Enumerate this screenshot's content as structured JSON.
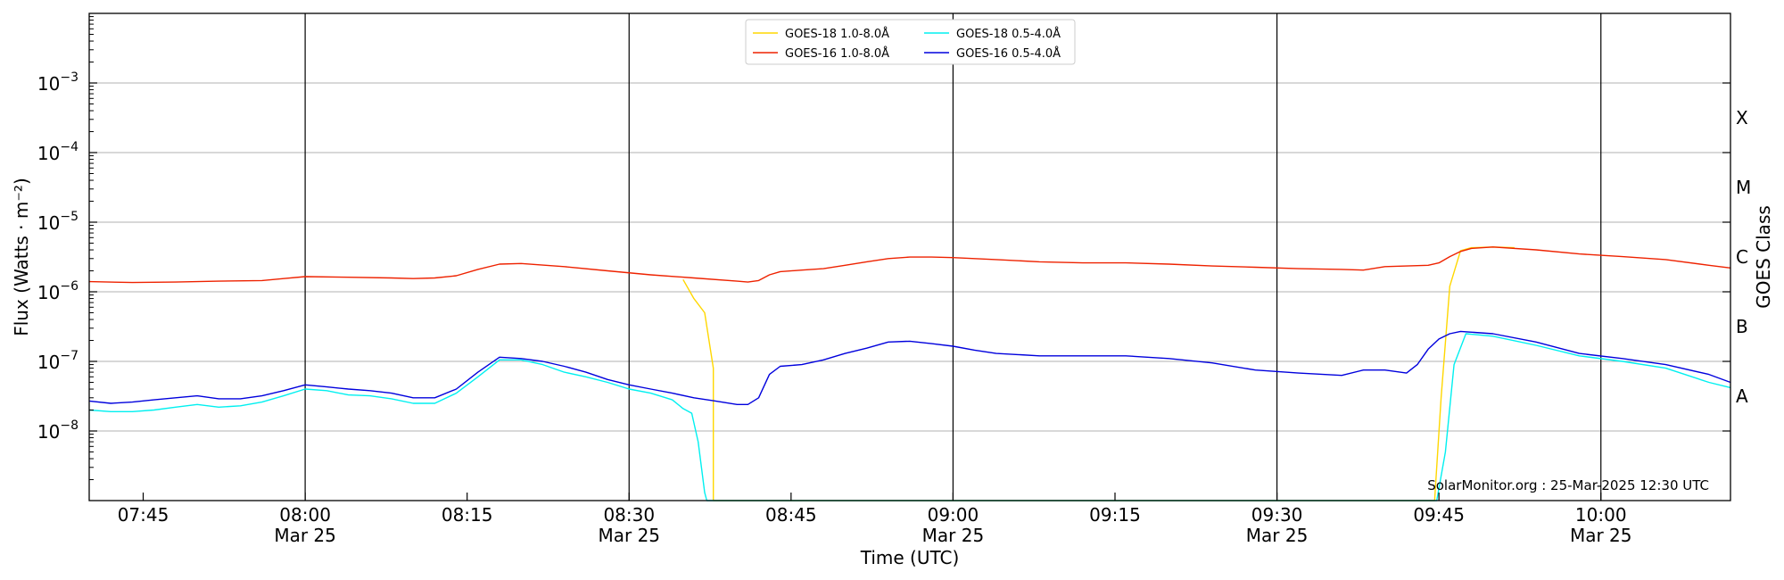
{
  "chart_data": {
    "type": "line",
    "title": "",
    "xlabel": "Time (UTC)",
    "ylabel": "Flux (Watts · m⁻²)",
    "ylabel_right": "GOES Class",
    "credit": "SolarMonitor.org : 25-Mar-2025 12:30 UTC",
    "x_unit": "minutes after 07:40 UTC, 25-Mar-2025",
    "xlim": [
      0,
      152
    ],
    "ylim_log10": [
      -9,
      -2
    ],
    "y_scale": "log",
    "grid": "horizontal",
    "legend_position": "top-center",
    "x_ticks": [
      {
        "at": 5,
        "label": "07:45",
        "sub": ""
      },
      {
        "at": 20,
        "label": "08:00",
        "sub": "Mar 25"
      },
      {
        "at": 35,
        "label": "08:15",
        "sub": ""
      },
      {
        "at": 50,
        "label": "08:30",
        "sub": "Mar 25"
      },
      {
        "at": 65,
        "label": "08:45",
        "sub": ""
      },
      {
        "at": 80,
        "label": "09:00",
        "sub": "Mar 25"
      },
      {
        "at": 95,
        "label": "09:15",
        "sub": ""
      },
      {
        "at": 110,
        "label": "09:30",
        "sub": "Mar 25"
      },
      {
        "at": 125,
        "label": "09:45",
        "sub": ""
      },
      {
        "at": 140,
        "label": "10:00",
        "sub": "Mar 25"
      }
    ],
    "vlines": [
      20,
      50,
      80,
      110,
      140
    ],
    "y_ticks": [
      {
        "exp": -8,
        "base": "10",
        "power": "−8"
      },
      {
        "exp": -7,
        "base": "10",
        "power": "−7"
      },
      {
        "exp": -6,
        "base": "10",
        "power": "−6"
      },
      {
        "exp": -5,
        "base": "10",
        "power": "−5"
      },
      {
        "exp": -4,
        "base": "10",
        "power": "−4"
      },
      {
        "exp": -3,
        "base": "10",
        "power": "−3"
      }
    ],
    "goes_classes": [
      {
        "label": "A",
        "log10": -7.5
      },
      {
        "label": "B",
        "log10": -6.5
      },
      {
        "label": "C",
        "log10": -5.5
      },
      {
        "label": "M",
        "log10": -4.5
      },
      {
        "label": "X",
        "log10": -3.5
      }
    ],
    "series": [
      {
        "name": "GOES-18 1.0-8.0Å",
        "color": "#ffd700",
        "points": [
          [
            55,
            1.5e-06
          ],
          [
            56,
            8e-07
          ],
          [
            57,
            5e-07
          ],
          [
            57.8,
            8e-08
          ],
          [
            57.8,
            1e-09
          ],
          [
            124.6,
            1e-09
          ],
          [
            125.2,
            3e-08
          ],
          [
            126.0,
            1.2e-06
          ],
          [
            127,
            3.9e-06
          ],
          [
            128,
            4.3e-06
          ],
          [
            130,
            4.4e-06
          ],
          [
            132,
            4.3e-06
          ]
        ]
      },
      {
        "name": "GOES-16 1.0-8.0Å",
        "color": "#ee2200",
        "points": [
          [
            0,
            1.4e-06
          ],
          [
            4,
            1.36e-06
          ],
          [
            8,
            1.38e-06
          ],
          [
            12,
            1.42e-06
          ],
          [
            16,
            1.45e-06
          ],
          [
            18,
            1.55e-06
          ],
          [
            20,
            1.65e-06
          ],
          [
            24,
            1.62e-06
          ],
          [
            28,
            1.58e-06
          ],
          [
            30,
            1.55e-06
          ],
          [
            32,
            1.58e-06
          ],
          [
            34,
            1.7e-06
          ],
          [
            36,
            2.1e-06
          ],
          [
            38,
            2.5e-06
          ],
          [
            40,
            2.55e-06
          ],
          [
            44,
            2.3e-06
          ],
          [
            48,
            2e-06
          ],
          [
            52,
            1.75e-06
          ],
          [
            56,
            1.58e-06
          ],
          [
            60,
            1.42e-06
          ],
          [
            61,
            1.38e-06
          ],
          [
            62,
            1.45e-06
          ],
          [
            63,
            1.75e-06
          ],
          [
            64,
            1.95e-06
          ],
          [
            66,
            2.05e-06
          ],
          [
            68,
            2.15e-06
          ],
          [
            70,
            2.4e-06
          ],
          [
            72,
            2.7e-06
          ],
          [
            74,
            3e-06
          ],
          [
            76,
            3.15e-06
          ],
          [
            78,
            3.15e-06
          ],
          [
            80,
            3.1e-06
          ],
          [
            84,
            2.9e-06
          ],
          [
            88,
            2.7e-06
          ],
          [
            92,
            2.6e-06
          ],
          [
            96,
            2.6e-06
          ],
          [
            100,
            2.5e-06
          ],
          [
            104,
            2.35e-06
          ],
          [
            108,
            2.25e-06
          ],
          [
            112,
            2.15e-06
          ],
          [
            116,
            2.1e-06
          ],
          [
            118,
            2.05e-06
          ],
          [
            120,
            2.3e-06
          ],
          [
            122,
            2.35e-06
          ],
          [
            124,
            2.4e-06
          ],
          [
            125,
            2.6e-06
          ],
          [
            126,
            3.2e-06
          ],
          [
            127,
            3.8e-06
          ],
          [
            128,
            4.2e-06
          ],
          [
            130,
            4.4e-06
          ],
          [
            134,
            4e-06
          ],
          [
            138,
            3.5e-06
          ],
          [
            142,
            3.2e-06
          ],
          [
            146,
            2.9e-06
          ],
          [
            150,
            2.4e-06
          ],
          [
            152,
            2.2e-06
          ]
        ]
      },
      {
        "name": "GOES-18 0.5-4.0Å",
        "color": "#00f0f0",
        "points": [
          [
            0,
            2e-08
          ],
          [
            2,
            1.9e-08
          ],
          [
            4,
            1.9e-08
          ],
          [
            6,
            2e-08
          ],
          [
            8,
            2.2e-08
          ],
          [
            10,
            2.4e-08
          ],
          [
            12,
            2.2e-08
          ],
          [
            14,
            2.3e-08
          ],
          [
            16,
            2.6e-08
          ],
          [
            18,
            3.2e-08
          ],
          [
            20,
            4e-08
          ],
          [
            22,
            3.8e-08
          ],
          [
            24,
            3.3e-08
          ],
          [
            26,
            3.2e-08
          ],
          [
            28,
            2.9e-08
          ],
          [
            30,
            2.5e-08
          ],
          [
            32,
            2.5e-08
          ],
          [
            34,
            3.5e-08
          ],
          [
            36,
            6e-08
          ],
          [
            38,
            1.05e-07
          ],
          [
            40,
            1.05e-07
          ],
          [
            42,
            9e-08
          ],
          [
            44,
            7e-08
          ],
          [
            46,
            6e-08
          ],
          [
            48,
            5e-08
          ],
          [
            50,
            4e-08
          ],
          [
            52,
            3.5e-08
          ],
          [
            54,
            2.8e-08
          ],
          [
            55,
            2.1e-08
          ],
          [
            55.8,
            1.8e-08
          ],
          [
            56.4,
            7e-09
          ],
          [
            57.0,
            1.3e-09
          ],
          [
            57.2,
            1e-09
          ],
          [
            124.8,
            1e-09
          ],
          [
            125.6,
            5e-09
          ],
          [
            126.4,
            9e-08
          ],
          [
            127.5,
            2.5e-07
          ],
          [
            130,
            2.3e-07
          ],
          [
            134,
            1.7e-07
          ],
          [
            138,
            1.2e-07
          ],
          [
            142,
            1e-07
          ],
          [
            146,
            8e-08
          ],
          [
            150,
            5e-08
          ],
          [
            152,
            4.2e-08
          ]
        ]
      },
      {
        "name": "GOES-16 0.5-4.0Å",
        "color": "#0000dd",
        "points": [
          [
            0,
            2.7e-08
          ],
          [
            2,
            2.5e-08
          ],
          [
            4,
            2.6e-08
          ],
          [
            6,
            2.8e-08
          ],
          [
            8,
            3e-08
          ],
          [
            10,
            3.2e-08
          ],
          [
            12,
            2.9e-08
          ],
          [
            14,
            2.9e-08
          ],
          [
            16,
            3.2e-08
          ],
          [
            18,
            3.8e-08
          ],
          [
            20,
            4.6e-08
          ],
          [
            22,
            4.3e-08
          ],
          [
            24,
            4e-08
          ],
          [
            26,
            3.8e-08
          ],
          [
            28,
            3.5e-08
          ],
          [
            30,
            3e-08
          ],
          [
            32,
            3e-08
          ],
          [
            34,
            4e-08
          ],
          [
            36,
            7e-08
          ],
          [
            38,
            1.15e-07
          ],
          [
            40,
            1.1e-07
          ],
          [
            42,
            1e-07
          ],
          [
            44,
            8.5e-08
          ],
          [
            46,
            7e-08
          ],
          [
            48,
            5.5e-08
          ],
          [
            50,
            4.6e-08
          ],
          [
            52,
            4e-08
          ],
          [
            54,
            3.5e-08
          ],
          [
            56,
            3e-08
          ],
          [
            58,
            2.7e-08
          ],
          [
            60,
            2.4e-08
          ],
          [
            61,
            2.4e-08
          ],
          [
            62,
            3e-08
          ],
          [
            63,
            6.5e-08
          ],
          [
            64,
            8.5e-08
          ],
          [
            66,
            9e-08
          ],
          [
            68,
            1.05e-07
          ],
          [
            70,
            1.3e-07
          ],
          [
            72,
            1.55e-07
          ],
          [
            74,
            1.9e-07
          ],
          [
            76,
            1.95e-07
          ],
          [
            78,
            1.8e-07
          ],
          [
            80,
            1.65e-07
          ],
          [
            82,
            1.45e-07
          ],
          [
            84,
            1.3e-07
          ],
          [
            86,
            1.25e-07
          ],
          [
            88,
            1.2e-07
          ],
          [
            92,
            1.2e-07
          ],
          [
            96,
            1.2e-07
          ],
          [
            100,
            1.1e-07
          ],
          [
            104,
            9.5e-08
          ],
          [
            108,
            7.5e-08
          ],
          [
            112,
            6.8e-08
          ],
          [
            116,
            6.3e-08
          ],
          [
            118,
            7.5e-08
          ],
          [
            120,
            7.5e-08
          ],
          [
            122,
            6.8e-08
          ],
          [
            123,
            9e-08
          ],
          [
            124,
            1.5e-07
          ],
          [
            125,
            2.1e-07
          ],
          [
            126,
            2.5e-07
          ],
          [
            127,
            2.7e-07
          ],
          [
            130,
            2.5e-07
          ],
          [
            134,
            1.9e-07
          ],
          [
            138,
            1.3e-07
          ],
          [
            142,
            1.1e-07
          ],
          [
            146,
            9e-08
          ],
          [
            150,
            6.5e-08
          ],
          [
            152,
            5e-08
          ]
        ]
      }
    ]
  }
}
